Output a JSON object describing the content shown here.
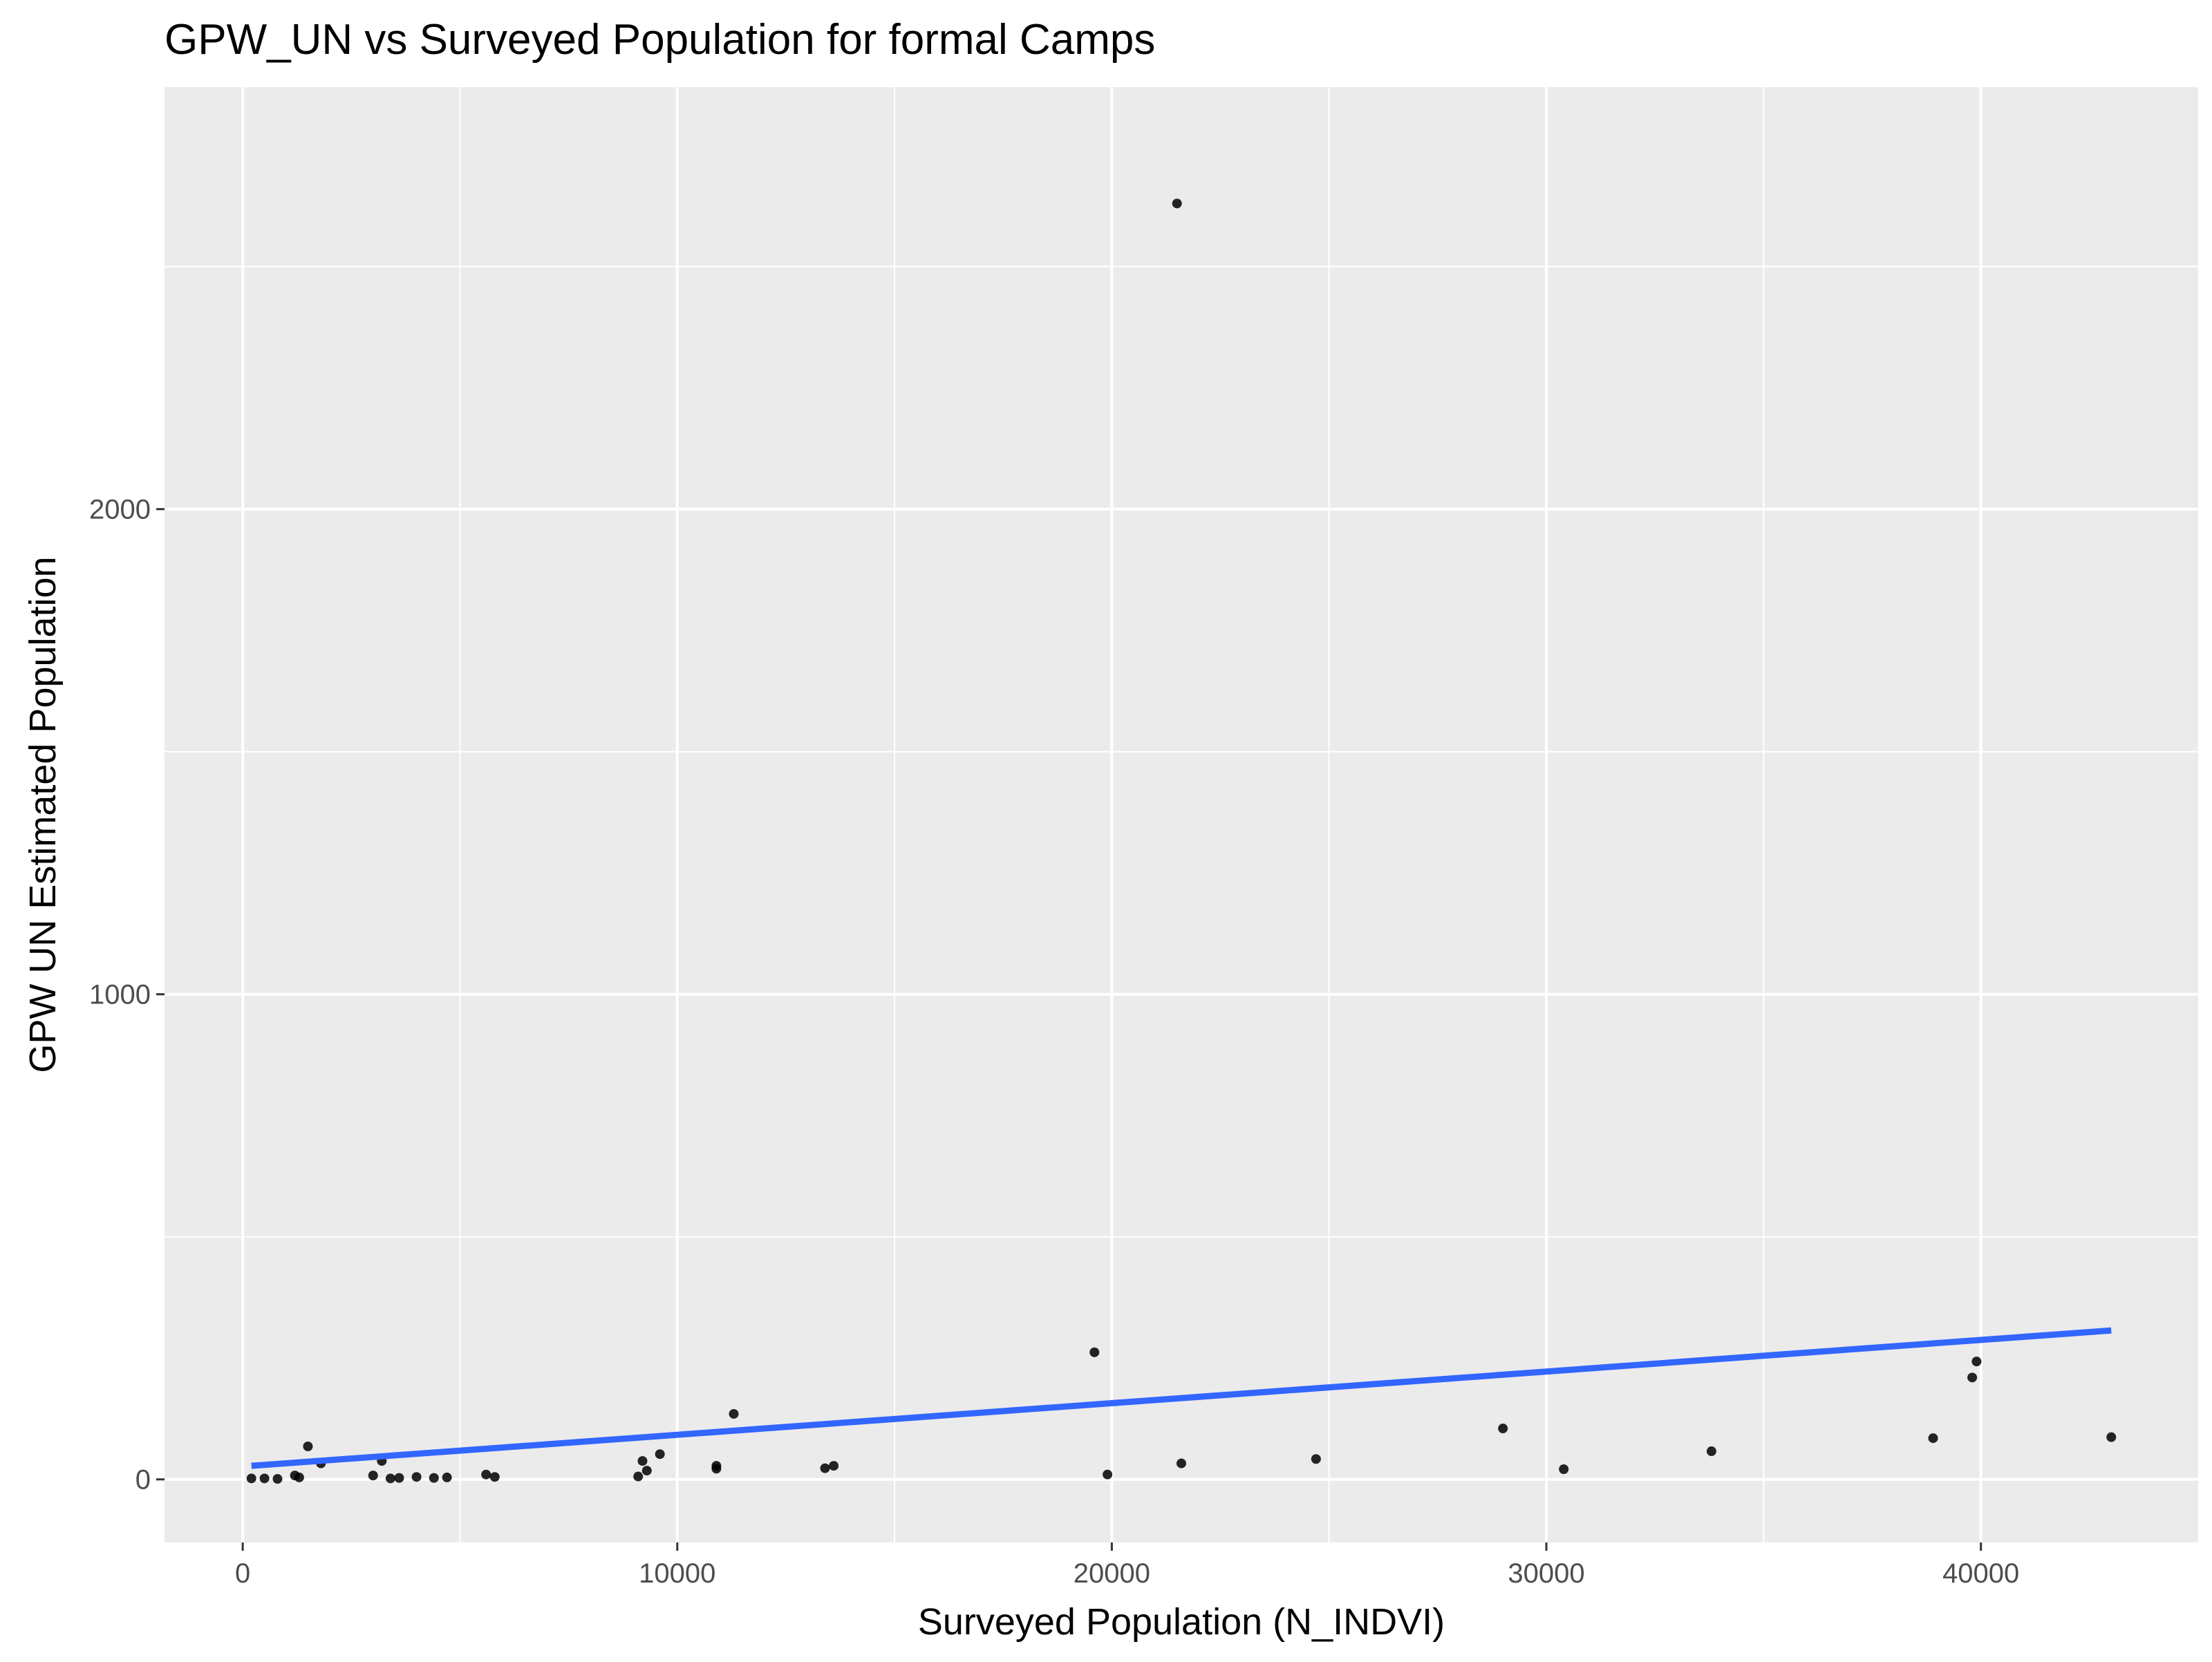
{
  "chart_data": {
    "type": "scatter",
    "title": "GPW_UN vs Surveyed Population for formal Camps",
    "xlabel": "Surveyed Population (N_INDVI)",
    "ylabel": "GPW UN Estimated Population",
    "xlim": [
      -1800,
      45000
    ],
    "ylim": [
      -130,
      2870
    ],
    "x_ticks": [
      {
        "value": 0,
        "label": "0"
      },
      {
        "value": 10000,
        "label": "10000"
      },
      {
        "value": 20000,
        "label": "20000"
      },
      {
        "value": 30000,
        "label": "30000"
      },
      {
        "value": 40000,
        "label": "40000"
      }
    ],
    "x_minor_ticks": [
      5000,
      15000,
      25000,
      35000
    ],
    "y_ticks": [
      {
        "value": 0,
        "label": "0"
      },
      {
        "value": 1000,
        "label": "1000"
      },
      {
        "value": 2000,
        "label": "2000"
      }
    ],
    "y_minor_ticks": [
      500,
      1500,
      2500
    ],
    "grid": true,
    "background_color": "#ebebeb",
    "grid_color": "#ffffff",
    "point_color": "#000000",
    "series": [
      {
        "points": [
          {
            "x": 200,
            "y": 2
          },
          {
            "x": 500,
            "y": 2
          },
          {
            "x": 800,
            "y": 1
          },
          {
            "x": 1200,
            "y": 8
          },
          {
            "x": 1300,
            "y": 4
          },
          {
            "x": 1500,
            "y": 68
          },
          {
            "x": 1800,
            "y": 33
          },
          {
            "x": 3000,
            "y": 8
          },
          {
            "x": 3200,
            "y": 38
          },
          {
            "x": 3400,
            "y": 2
          },
          {
            "x": 3600,
            "y": 3
          },
          {
            "x": 4000,
            "y": 5
          },
          {
            "x": 4400,
            "y": 3
          },
          {
            "x": 4700,
            "y": 4
          },
          {
            "x": 5600,
            "y": 10
          },
          {
            "x": 5800,
            "y": 5
          },
          {
            "x": 9100,
            "y": 6
          },
          {
            "x": 9200,
            "y": 38
          },
          {
            "x": 9300,
            "y": 18
          },
          {
            "x": 9600,
            "y": 52
          },
          {
            "x": 10900,
            "y": 28
          },
          {
            "x": 10900,
            "y": 22
          },
          {
            "x": 11300,
            "y": 135
          },
          {
            "x": 13400,
            "y": 23
          },
          {
            "x": 13600,
            "y": 28
          },
          {
            "x": 19600,
            "y": 262
          },
          {
            "x": 19900,
            "y": 10
          },
          {
            "x": 21500,
            "y": 2630
          },
          {
            "x": 21600,
            "y": 33
          },
          {
            "x": 24700,
            "y": 42
          },
          {
            "x": 29000,
            "y": 105
          },
          {
            "x": 30400,
            "y": 21
          },
          {
            "x": 33800,
            "y": 58
          },
          {
            "x": 38900,
            "y": 85
          },
          {
            "x": 39800,
            "y": 210
          },
          {
            "x": 39900,
            "y": 243
          },
          {
            "x": 43000,
            "y": 87
          }
        ]
      }
    ],
    "trend_line": {
      "color": "#3366ff",
      "points": [
        {
          "x": 200,
          "y": 28
        },
        {
          "x": 43000,
          "y": 307
        }
      ]
    }
  }
}
